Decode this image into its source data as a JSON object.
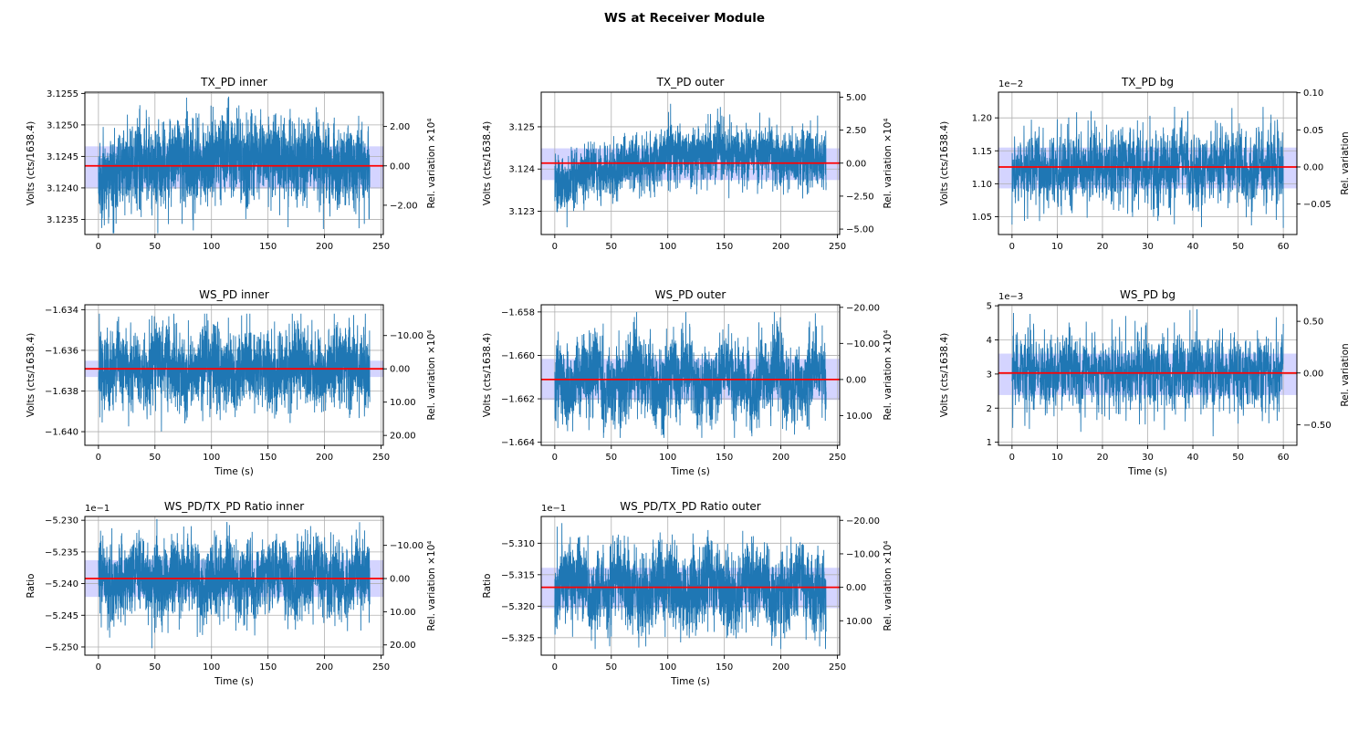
{
  "figure": {
    "title": "WS at Receiver Module",
    "background": "#ffffff"
  },
  "colors": {
    "series": "#1f77b4",
    "mean_line": "#ff0000",
    "band": "rgba(0,0,255,0.17)",
    "grid": "#b0b0b0",
    "spine": "#000000",
    "text": "#000000"
  },
  "chart_data": [
    {
      "id": "tx-pd-inner",
      "type": "line",
      "grid": {
        "row": 0,
        "col": 0
      },
      "title": "TX_PD inner",
      "ylabel": "Volts (cts/1638.4)",
      "xlabel": "",
      "right_label": "Rel. variation ×10⁴",
      "offset_label": "",
      "x_ticks": [
        0,
        50,
        100,
        150,
        200,
        250
      ],
      "xlim": [
        -12,
        252
      ],
      "y_ticks": [
        3.1235,
        3.124,
        3.1245,
        3.125,
        3.1255
      ],
      "y_tick_labels": [
        "3.1235",
        "3.1240",
        "3.1245",
        "3.1250",
        "3.1255"
      ],
      "ylim": [
        3.12326,
        3.12552
      ],
      "right_ticks": [
        {
          "label": "2.00",
          "value": 3.124975
        },
        {
          "label": "0.00",
          "value": 3.12435
        },
        {
          "label": "−2.00",
          "value": 3.123725
        }
      ],
      "mean": 3.12435,
      "band": [
        3.12399,
        3.12466
      ],
      "series": {
        "n": 2400,
        "t_max": 240,
        "sigma": 0.00033,
        "min": 3.12328,
        "max": 3.12545,
        "wander": 0.25,
        "trend": [
          [
            0,
            -0.00013
          ],
          [
            60,
            3e-05
          ],
          [
            120,
            0.00013
          ],
          [
            180,
            8e-05
          ],
          [
            240,
            -8e-05
          ]
        ],
        "seed": 11
      }
    },
    {
      "id": "tx-pd-outer",
      "type": "line",
      "grid": {
        "row": 0,
        "col": 1
      },
      "title": "TX_PD outer",
      "ylabel": "Volts (cts/1638.4)",
      "xlabel": "",
      "right_label": "Rel. variation ×10⁴",
      "offset_label": "",
      "x_ticks": [
        0,
        50,
        100,
        150,
        200,
        250
      ],
      "xlim": [
        -12,
        252
      ],
      "y_ticks": [
        3.123,
        3.124,
        3.125
      ],
      "y_tick_labels": [
        "3.123",
        "3.124",
        "3.125"
      ],
      "ylim": [
        3.12245,
        3.12582
      ],
      "right_ticks": [
        {
          "label": "5.00",
          "value": 3.125702
        },
        {
          "label": "2.50",
          "value": 3.124921
        },
        {
          "label": "0.00",
          "value": 3.12414
        },
        {
          "label": "−2.50",
          "value": 3.123359
        },
        {
          "label": "−5.00",
          "value": 3.122578
        }
      ],
      "mean": 3.12414,
      "band": [
        3.12374,
        3.12449
      ],
      "series": {
        "n": 2400,
        "t_max": 240,
        "sigma": 0.00033,
        "min": 3.1226,
        "max": 3.1258,
        "wander": 0.3,
        "trend": [
          [
            0,
            -0.00055
          ],
          [
            25,
            -0.00028
          ],
          [
            60,
            -8e-05
          ],
          [
            100,
            0.00018
          ],
          [
            150,
            0.00028
          ],
          [
            200,
            0.00012
          ],
          [
            240,
            8e-05
          ]
        ],
        "seed": 22
      }
    },
    {
      "id": "tx-pd-bg",
      "type": "line",
      "grid": {
        "row": 0,
        "col": 2
      },
      "title": "TX_PD bg",
      "ylabel": "Volts (cts/1638.4)",
      "xlabel": "",
      "right_label": "Rel. variation",
      "offset_label": "1e−2",
      "x_ticks": [
        0,
        10,
        20,
        30,
        40,
        50,
        60
      ],
      "xlim": [
        -3,
        63
      ],
      "y_ticks": [
        1.05,
        1.1,
        1.15,
        1.2
      ],
      "y_tick_labels": [
        "1.05",
        "1.10",
        "1.15",
        "1.20"
      ],
      "ylim": [
        1.023,
        1.239
      ],
      "right_ticks": [
        {
          "label": "0.10",
          "value": 1.23805
        },
        {
          "label": "0.05",
          "value": 1.18178
        },
        {
          "label": "0.00",
          "value": 1.1255
        },
        {
          "label": "−0.05",
          "value": 1.06923
        }
      ],
      "mean": 1.1255,
      "band": [
        1.093,
        1.155
      ],
      "series": {
        "n": 1500,
        "t_max": 60,
        "sigma": 0.0298,
        "min": 1.033,
        "max": 1.229,
        "wander": 0.22,
        "trend": null,
        "seed": 33
      }
    },
    {
      "id": "ws-pd-inner",
      "type": "line",
      "grid": {
        "row": 1,
        "col": 0
      },
      "title": "WS_PD inner",
      "ylabel": "Volts (cts/1638.4)",
      "xlabel": "Time (s)",
      "right_label": "Rel. variation ×10⁴",
      "offset_label": "",
      "x_ticks": [
        0,
        50,
        100,
        150,
        200,
        250
      ],
      "xlim": [
        -12,
        252
      ],
      "y_ticks": [
        -1.634,
        -1.636,
        -1.638,
        -1.64
      ],
      "y_tick_labels": [
        "−1.634",
        "−1.636",
        "−1.638",
        "−1.640"
      ],
      "ylim": [
        -1.64067,
        -1.63376
      ],
      "right_ticks": [
        {
          "label": "−10.00",
          "value": -1.635273
        },
        {
          "label": "0.00",
          "value": -1.63691
        },
        {
          "label": "10.00",
          "value": -1.638547
        },
        {
          "label": "20.00",
          "value": -1.640184
        }
      ],
      "mean": -1.63691,
      "band": [
        -1.63731,
        -1.63651
      ],
      "series": {
        "n": 2400,
        "t_max": 240,
        "sigma": 0.00095,
        "min": -1.6405,
        "max": -1.6342,
        "wander": 0.4,
        "trend": null,
        "seed": 44
      }
    },
    {
      "id": "ws-pd-outer",
      "type": "line",
      "grid": {
        "row": 1,
        "col": 1
      },
      "title": "WS_PD outer",
      "ylabel": "Volts (cts/1638.4)",
      "xlabel": "Time (s)",
      "right_label": "Rel. variation ×10⁴",
      "offset_label": "",
      "x_ticks": [
        0,
        50,
        100,
        150,
        200,
        250
      ],
      "xlim": [
        -12,
        252
      ],
      "y_ticks": [
        -1.658,
        -1.66,
        -1.662,
        -1.664
      ],
      "y_tick_labels": [
        "−1.658",
        "−1.660",
        "−1.662",
        "−1.664"
      ],
      "ylim": [
        -1.66414,
        -1.65767
      ],
      "right_ticks": [
        {
          "label": "−20.00",
          "value": -1.657788
        },
        {
          "label": "−10.00",
          "value": -1.659449
        },
        {
          "label": "0.00",
          "value": -1.66111
        },
        {
          "label": "10.00",
          "value": -1.662771
        }
      ],
      "mean": -1.66111,
      "band": [
        -1.66205,
        -1.66016
      ],
      "series": {
        "n": 2400,
        "t_max": 240,
        "sigma": 0.00088,
        "min": -1.6638,
        "max": -1.658,
        "wander": 0.62,
        "trend": null,
        "seed": 55
      }
    },
    {
      "id": "ws-pd-bg",
      "type": "line",
      "grid": {
        "row": 1,
        "col": 2
      },
      "title": "WS_PD bg",
      "ylabel": "Volts (cts/1638.4)",
      "xlabel": "Time (s)",
      "right_label": "Rel. variation",
      "offset_label": "1e−3",
      "x_ticks": [
        0,
        10,
        20,
        30,
        40,
        50,
        60
      ],
      "xlim": [
        -3,
        63
      ],
      "y_ticks": [
        1,
        2,
        3,
        4,
        5
      ],
      "y_tick_labels": [
        "1",
        "2",
        "3",
        "4",
        "5"
      ],
      "ylim": [
        0.91,
        5.03
      ],
      "right_ticks": [
        {
          "label": "0.50",
          "value": 4.545
        },
        {
          "label": "0.00",
          "value": 3.03
        },
        {
          "label": "−0.50",
          "value": 1.515
        }
      ],
      "mean": 3.03,
      "band": [
        2.384,
        3.598
      ],
      "series": {
        "n": 1500,
        "t_max": 60,
        "sigma": 0.57,
        "min": 1.15,
        "max": 4.9,
        "wander": 0.25,
        "trend": null,
        "seed": 66
      }
    },
    {
      "id": "ws-tx-ratio-inner",
      "type": "line",
      "grid": {
        "row": 2,
        "col": 0
      },
      "title": "WS_PD/TX_PD Ratio inner",
      "ylabel": "Ratio",
      "xlabel": "Time (s)",
      "right_label": "Rel. variation ×10⁴",
      "offset_label": "1e−1",
      "x_ticks": [
        0,
        50,
        100,
        150,
        200,
        250
      ],
      "xlim": [
        -12,
        252
      ],
      "y_ticks": [
        -5.23,
        -5.235,
        -5.24,
        -5.245,
        -5.25
      ],
      "y_tick_labels": [
        "−5.230",
        "−5.235",
        "−5.240",
        "−5.245",
        "−5.250"
      ],
      "ylim": [
        -5.2513,
        -5.2294
      ],
      "right_ticks": [
        {
          "label": "−10.00",
          "value": -5.233961
        },
        {
          "label": "0.00",
          "value": -5.2392
        },
        {
          "label": "10.00",
          "value": -5.244439
        },
        {
          "label": "20.00",
          "value": -5.249678
        }
      ],
      "mean": -5.2392,
      "band": [
        -5.2421,
        -5.2363
      ],
      "series": {
        "n": 2400,
        "t_max": 240,
        "sigma": 0.003,
        "min": -5.2502,
        "max": -5.2298,
        "wander": 0.4,
        "trend": null,
        "seed": 77
      }
    },
    {
      "id": "ws-tx-ratio-outer",
      "type": "line",
      "grid": {
        "row": 2,
        "col": 1
      },
      "title": "WS_PD/TX_PD Ratio outer",
      "ylabel": "Ratio",
      "xlabel": "Time (s)",
      "right_label": "Rel. variation ×10⁴",
      "offset_label": "1e−1",
      "x_ticks": [
        0,
        50,
        100,
        150,
        200,
        250
      ],
      "xlim": [
        -12,
        252
      ],
      "y_ticks": [
        -5.31,
        -5.315,
        -5.32,
        -5.325
      ],
      "y_tick_labels": [
        "−5.310",
        "−5.315",
        "−5.320",
        "−5.325"
      ],
      "ylim": [
        -5.32778,
        -5.30575
      ],
      "right_ticks": [
        {
          "label": "−20.00",
          "value": -5.306366
        },
        {
          "label": "−10.00",
          "value": -5.311683
        },
        {
          "label": "0.00",
          "value": -5.317
        },
        {
          "label": "10.00",
          "value": -5.322317
        }
      ],
      "mean": -5.317,
      "band": [
        -5.3203,
        -5.3139
      ],
      "series": {
        "n": 2400,
        "t_max": 240,
        "sigma": 0.0031,
        "min": -5.3268,
        "max": -5.3068,
        "wander": 0.62,
        "trend": null,
        "seed": 88
      }
    }
  ]
}
